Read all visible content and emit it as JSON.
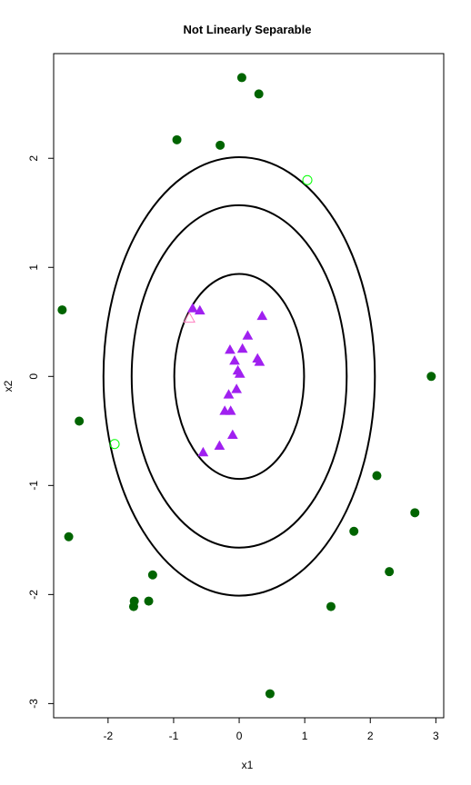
{
  "chart_data": {
    "type": "scatter",
    "title": "Not Linearly Separable",
    "xlabel": "x1",
    "ylabel": "x2",
    "xlim": [
      -2.83,
      3.12
    ],
    "ylim": [
      -3.13,
      2.96
    ],
    "xticks": [
      -2,
      -1,
      0,
      1,
      2,
      3
    ],
    "yticks": [
      -3,
      -2,
      -1,
      0,
      1,
      2
    ],
    "grid": false,
    "colors": {
      "outer_class": "#006400",
      "inner_class": "#a020f0",
      "outer_class_hollow": "#00ff00",
      "inner_class_hollow": "#ff80c0",
      "contours": "#000000"
    },
    "contours": [
      {
        "cx": 0.0,
        "cy": 0.0,
        "rx": 0.99,
        "ry": 0.94
      },
      {
        "cx": 0.0,
        "cy": 0.0,
        "rx": 1.64,
        "ry": 1.57
      },
      {
        "cx": 0.0,
        "cy": 0.0,
        "rx": 2.07,
        "ry": 2.01
      }
    ],
    "series": [
      {
        "marker": "filled-circle",
        "x": [
          0.04,
          0.3,
          -0.95,
          -0.29,
          -2.7,
          2.93,
          -2.44,
          2.1,
          1.75,
          -2.6,
          2.68,
          2.29,
          -1.32,
          -1.6,
          -1.38,
          -1.61,
          1.4,
          0.47
        ],
        "y": [
          2.74,
          2.59,
          2.17,
          2.12,
          0.61,
          0.0,
          -0.41,
          -0.91,
          -1.42,
          -1.47,
          -1.25,
          -1.79,
          -1.82,
          -2.06,
          -2.06,
          -2.11,
          -2.11,
          -2.91
        ]
      },
      {
        "marker": "hollow-circle",
        "x": [
          1.04,
          -1.9
        ],
        "y": [
          1.8,
          -0.62
        ]
      },
      {
        "marker": "filled-triangle",
        "x": [
          -0.71,
          -0.6,
          0.35,
          0.13,
          -0.14,
          0.05,
          -0.07,
          0.28,
          0.31,
          -0.02,
          0.01,
          -0.16,
          -0.04,
          -0.22,
          -0.13,
          -0.1,
          -0.3,
          -0.55
        ],
        "y": [
          0.62,
          0.6,
          0.55,
          0.37,
          0.24,
          0.25,
          0.14,
          0.16,
          0.13,
          0.05,
          0.02,
          -0.17,
          -0.12,
          -0.32,
          -0.32,
          -0.54,
          -0.64,
          -0.7
        ]
      },
      {
        "marker": "hollow-triangle",
        "x": [
          -0.76
        ],
        "y": [
          0.53
        ]
      }
    ]
  }
}
